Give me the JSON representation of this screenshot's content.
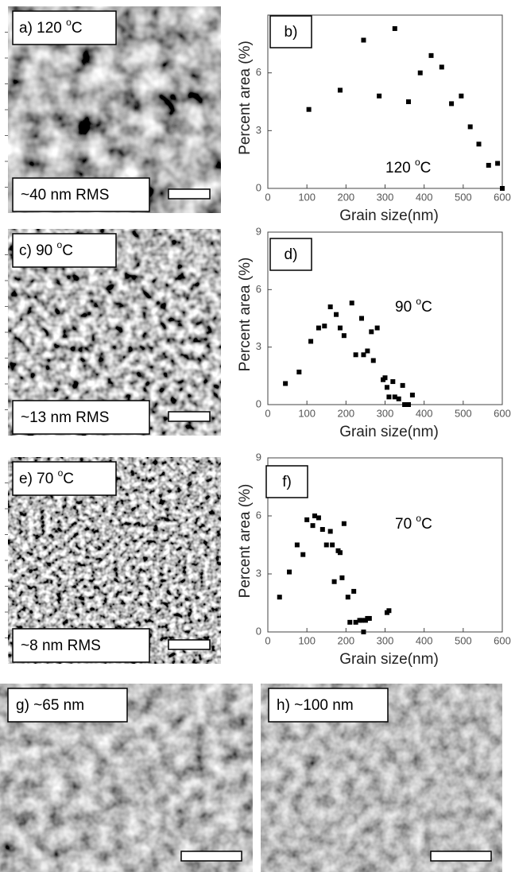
{
  "panels": [
    {
      "label": [
        "a) 120 ",
        "o",
        "C"
      ],
      "note": "~40 nm RMS"
    },
    {
      "label": [
        "c) 90 ",
        "o",
        "C"
      ],
      "note": "~13 nm RMS"
    },
    {
      "label": [
        "e) 70 ",
        "o",
        "C"
      ],
      "note": "~8 nm RMS"
    },
    {
      "label": [
        "g) ~65 nm"
      ]
    },
    {
      "label": [
        "h) ~100 nm"
      ]
    }
  ],
  "chart_data": [
    {
      "type": "scatter",
      "panel_label": "b)",
      "annotation": [
        "120 ",
        "o",
        "C"
      ],
      "x_label": "Grain size(nm)",
      "y_label": "Percent area (%)",
      "color": "#000000",
      "x": [
        105,
        185,
        245,
        285,
        325,
        360,
        390,
        418,
        445,
        470,
        495,
        518,
        540,
        565,
        588,
        600
      ],
      "values": [
        4.1,
        5.1,
        7.7,
        4.8,
        8.3,
        4.5,
        6.0,
        6.9,
        6.3,
        4.4,
        4.8,
        3.2,
        2.3,
        1.2,
        1.3,
        0
      ],
      "xlim": [
        0,
        600
      ],
      "ylim": [
        0,
        9
      ],
      "xticks": [
        0,
        100,
        200,
        300,
        400,
        500,
        600
      ],
      "yticks": [
        0,
        3,
        6
      ]
    },
    {
      "type": "scatter",
      "panel_label": "d)",
      "annotation": [
        "90 ",
        "o",
        "C"
      ],
      "x_label": "Grain size(nm)",
      "y_label": "Percent area (%)",
      "color": "#000000",
      "x": [
        45,
        80,
        110,
        130,
        145,
        160,
        175,
        185,
        195,
        215,
        225,
        240,
        245,
        255,
        265,
        270,
        280,
        295,
        300,
        305,
        310,
        320,
        325,
        335,
        345,
        350,
        360,
        370
      ],
      "values": [
        1.1,
        1.7,
        3.3,
        4.0,
        4.1,
        5.1,
        4.7,
        4.0,
        3.6,
        5.3,
        2.6,
        4.5,
        2.6,
        2.8,
        3.8,
        2.3,
        4.0,
        1.3,
        1.4,
        0.9,
        0.4,
        1.2,
        0.4,
        0.3,
        1.0,
        0,
        0,
        0.5
      ],
      "xlim": [
        0,
        600
      ],
      "ylim": [
        0,
        9
      ],
      "xticks": [
        0,
        100,
        200,
        300,
        400,
        500,
        600
      ],
      "yticks": [
        0,
        3,
        6,
        9
      ]
    },
    {
      "type": "scatter",
      "panel_label": "f)",
      "annotation": [
        "70 ",
        "o",
        "C"
      ],
      "x_label": "Grain size(nm)",
      "y_label": "Percent area (%)",
      "color": "#000000",
      "x": [
        30,
        55,
        75,
        90,
        100,
        115,
        120,
        130,
        140,
        150,
        160,
        165,
        170,
        180,
        185,
        190,
        195,
        205,
        210,
        220,
        225,
        235,
        240,
        245,
        250,
        255,
        260,
        305,
        310
      ],
      "values": [
        1.8,
        3.1,
        4.5,
        4.0,
        5.8,
        5.5,
        6.0,
        5.9,
        5.3,
        4.5,
        5.2,
        4.5,
        2.6,
        4.2,
        4.1,
        2.8,
        5.6,
        1.8,
        0.5,
        2.1,
        0.5,
        0.6,
        0.6,
        0,
        0.6,
        0.7,
        0.7,
        1.0,
        1.1
      ],
      "xlim": [
        0,
        600
      ],
      "ylim": [
        0,
        9
      ],
      "xticks": [
        0,
        100,
        200,
        300,
        400,
        500,
        600
      ],
      "yticks": [
        0,
        3,
        6,
        9
      ]
    }
  ]
}
